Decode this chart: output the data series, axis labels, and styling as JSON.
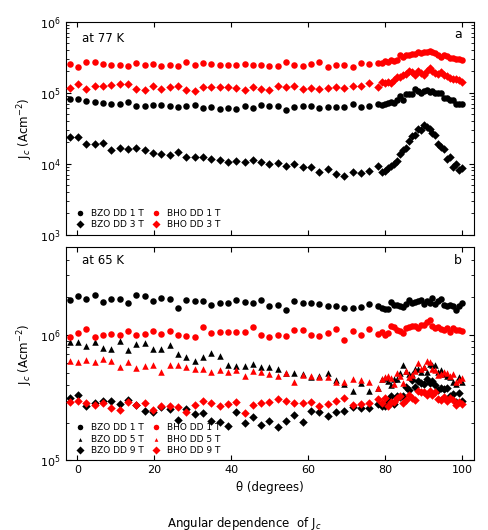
{
  "panel_a_title": "at 77 K",
  "panel_b_title": "at 65 K",
  "panel_a_label": "a",
  "panel_b_label": "b",
  "xlabel": "θ (degrees)",
  "caption": "Angular dependence  of Jₑ",
  "panel_a_ylim": [
    1000.0,
    1000000.0
  ],
  "panel_b_ylim": [
    100000.0,
    5000000.0
  ],
  "xlim": [
    -3,
    103
  ],
  "xticks": [
    0,
    20,
    40,
    60,
    80,
    100
  ],
  "figsize": [
    4.89,
    5.3
  ],
  "dpi": 100
}
